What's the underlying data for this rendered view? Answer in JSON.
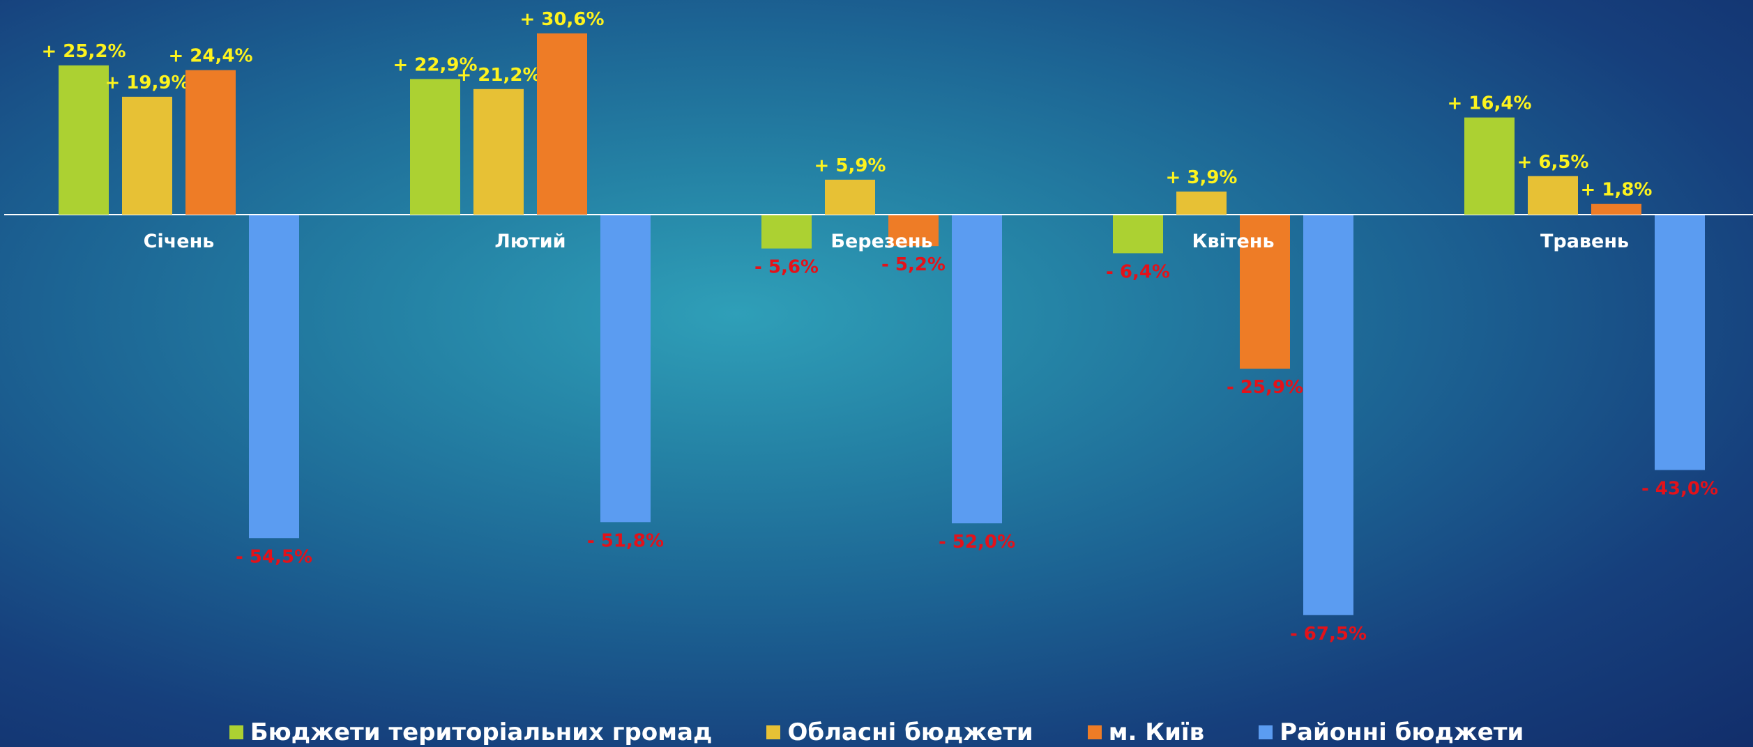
{
  "chart_data": {
    "type": "bar",
    "categories": [
      "Січень",
      "Лютий",
      "Березень",
      "Квітень",
      "Травень"
    ],
    "series": [
      {
        "name": "Бюджети територіальних громад",
        "color": "#acd132",
        "values": [
          25.2,
          22.9,
          -5.6,
          -6.4,
          16.4
        ],
        "labels": [
          "+ 25,2%",
          "+ 22,9%",
          "- 5,6%",
          "- 6,4%",
          "+ 16,4%"
        ]
      },
      {
        "name": "Обласні бюджети",
        "color": "#e7c135",
        "values": [
          19.9,
          21.2,
          5.9,
          3.9,
          6.5
        ],
        "labels": [
          "+ 19,9%",
          "+ 21,2%",
          "+ 5,9%",
          "+ 3,9%",
          "+ 6,5%"
        ]
      },
      {
        "name": "м. Київ",
        "color": "#ee7c26",
        "values": [
          24.4,
          30.6,
          -5.2,
          -25.9,
          1.8
        ],
        "labels": [
          "+ 24,4%",
          "+ 30,6%",
          "- 5,2%",
          "- 25,9%",
          "+ 1,8%"
        ]
      },
      {
        "name": "Районні бюджети",
        "color": "#5b9cf1",
        "values": [
          -54.5,
          -51.8,
          -52.0,
          -67.5,
          -43.0
        ],
        "labels": [
          "- 54,5%",
          "- 51,8%",
          "- 52,0%",
          "- 67,5%",
          "- 43,0%"
        ]
      }
    ],
    "positive_label_color": "#fdf31e",
    "negative_label_color": "#e3121a",
    "axis_color": "#ffffff",
    "xlabel": "",
    "ylabel": "",
    "grid": false,
    "legend_position": "bottom"
  }
}
